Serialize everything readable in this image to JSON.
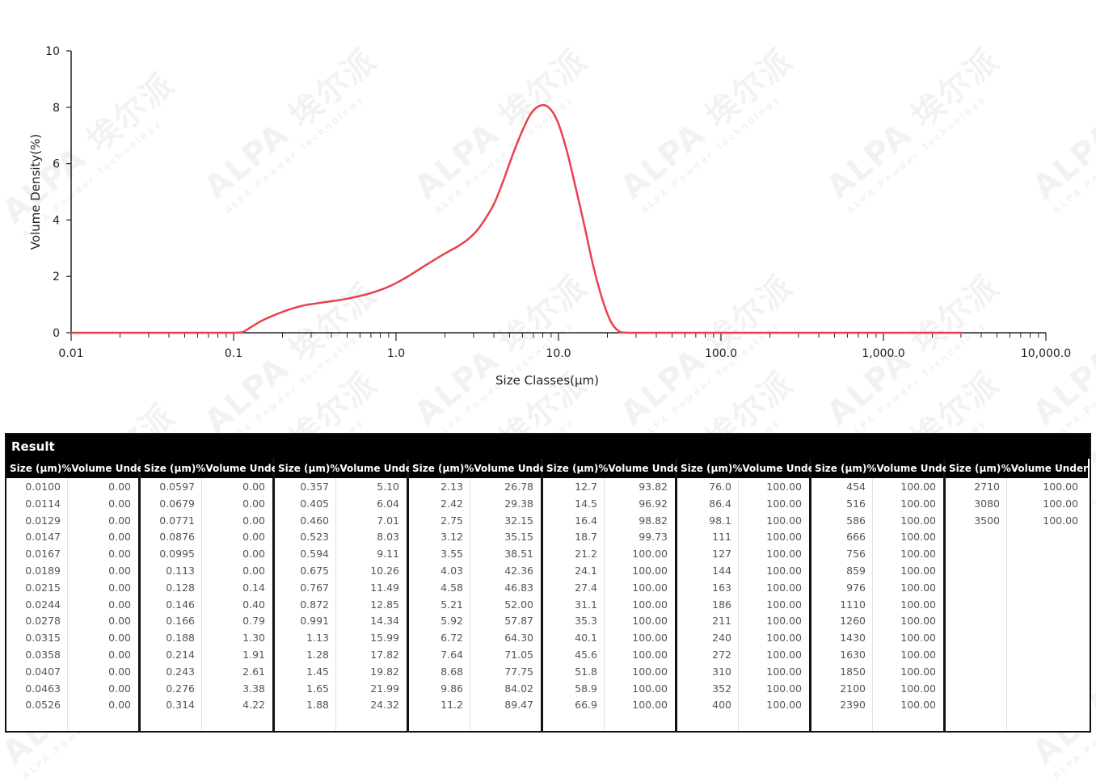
{
  "chart_data": {
    "type": "line",
    "x_scale": "log",
    "xlabel": "Size Classes(μm)",
    "ylabel": "Volume Density(%)",
    "xlim": [
      0.01,
      10000
    ],
    "ylim": [
      0,
      10
    ],
    "x_tick_labels": [
      "0.01",
      "0.1",
      "1.0",
      "10.0",
      "100.0",
      "1,000.0",
      "10,000.0"
    ],
    "y_tick_labels": [
      "0",
      "2",
      "4",
      "6",
      "8",
      "10"
    ],
    "series_color": "#e8414c",
    "series": [
      {
        "x": [
          0.01,
          0.0114,
          0.0129,
          0.0147,
          0.0167,
          0.0189,
          0.0215,
          0.0244,
          0.0278,
          0.0315,
          0.0358,
          0.0407,
          0.0463,
          0.0526,
          0.0597,
          0.0679,
          0.0771,
          0.0876,
          0.0995,
          0.113,
          0.128,
          0.146,
          0.166,
          0.188,
          0.214,
          0.243,
          0.276,
          0.314,
          0.357,
          0.405,
          0.46,
          0.523,
          0.594,
          0.675,
          0.767,
          0.872,
          0.991,
          1.13,
          1.28,
          1.45,
          1.65,
          1.88,
          2.13,
          2.42,
          2.75,
          3.12,
          3.55,
          4.03,
          4.58,
          5.21,
          5.92,
          6.72,
          7.64,
          8.68,
          9.86,
          11.2,
          12.7,
          14.5,
          16.4,
          18.7,
          21.2,
          24.1,
          27.4,
          31.1,
          35.3,
          40.1,
          45.6,
          51.8,
          58.9,
          66.9,
          76.0,
          86.4,
          98.1,
          111,
          127,
          144,
          163,
          186,
          211,
          240,
          272,
          310,
          352,
          400,
          454,
          516,
          586,
          666,
          756,
          859,
          976,
          1110,
          1260,
          1430,
          1630,
          1850,
          2100,
          2390,
          2710,
          3080
        ],
        "y": [
          0,
          0,
          0,
          0,
          0,
          0,
          0,
          0,
          0,
          0,
          0,
          0,
          0,
          0,
          0,
          0,
          0,
          0,
          0,
          0.02,
          0.2,
          0.4,
          0.55,
          0.68,
          0.8,
          0.9,
          0.98,
          1.03,
          1.08,
          1.12,
          1.17,
          1.23,
          1.3,
          1.38,
          1.48,
          1.6,
          1.75,
          1.93,
          2.12,
          2.32,
          2.52,
          2.72,
          2.9,
          3.08,
          3.3,
          3.6,
          4.05,
          4.6,
          5.4,
          6.3,
          7.1,
          7.75,
          8.05,
          8.0,
          7.5,
          6.5,
          5.2,
          3.75,
          2.35,
          1.15,
          0.35,
          0.02,
          0,
          0,
          0,
          0,
          0,
          0,
          0,
          0,
          0,
          0,
          0,
          0,
          0,
          0,
          0,
          0,
          0,
          0,
          0,
          0,
          0,
          0,
          0,
          0,
          0,
          0,
          0,
          0,
          0,
          0,
          0,
          0,
          0,
          0,
          0,
          0,
          0,
          0
        ]
      }
    ]
  },
  "watermark": {
    "text": "ALPA 埃尔派",
    "sub": "ALPA Powder Technology"
  },
  "result": {
    "title": "Result",
    "col_size_header": "Size (μm)",
    "col_vol_header": "%Volume Under",
    "groups": [
      [
        [
          "0.0100",
          "0.00"
        ],
        [
          "0.0114",
          "0.00"
        ],
        [
          "0.0129",
          "0.00"
        ],
        [
          "0.0147",
          "0.00"
        ],
        [
          "0.0167",
          "0.00"
        ],
        [
          "0.0189",
          "0.00"
        ],
        [
          "0.0215",
          "0.00"
        ],
        [
          "0.0244",
          "0.00"
        ],
        [
          "0.0278",
          "0.00"
        ],
        [
          "0.0315",
          "0.00"
        ],
        [
          "0.0358",
          "0.00"
        ],
        [
          "0.0407",
          "0.00"
        ],
        [
          "0.0463",
          "0.00"
        ],
        [
          "0.0526",
          "0.00"
        ]
      ],
      [
        [
          "0.0597",
          "0.00"
        ],
        [
          "0.0679",
          "0.00"
        ],
        [
          "0.0771",
          "0.00"
        ],
        [
          "0.0876",
          "0.00"
        ],
        [
          "0.0995",
          "0.00"
        ],
        [
          "0.113",
          "0.00"
        ],
        [
          "0.128",
          "0.14"
        ],
        [
          "0.146",
          "0.40"
        ],
        [
          "0.166",
          "0.79"
        ],
        [
          "0.188",
          "1.30"
        ],
        [
          "0.214",
          "1.91"
        ],
        [
          "0.243",
          "2.61"
        ],
        [
          "0.276",
          "3.38"
        ],
        [
          "0.314",
          "4.22"
        ]
      ],
      [
        [
          "0.357",
          "5.10"
        ],
        [
          "0.405",
          "6.04"
        ],
        [
          "0.460",
          "7.01"
        ],
        [
          "0.523",
          "8.03"
        ],
        [
          "0.594",
          "9.11"
        ],
        [
          "0.675",
          "10.26"
        ],
        [
          "0.767",
          "11.49"
        ],
        [
          "0.872",
          "12.85"
        ],
        [
          "0.991",
          "14.34"
        ],
        [
          "1.13",
          "15.99"
        ],
        [
          "1.28",
          "17.82"
        ],
        [
          "1.45",
          "19.82"
        ],
        [
          "1.65",
          "21.99"
        ],
        [
          "1.88",
          "24.32"
        ]
      ],
      [
        [
          "2.13",
          "26.78"
        ],
        [
          "2.42",
          "29.38"
        ],
        [
          "2.75",
          "32.15"
        ],
        [
          "3.12",
          "35.15"
        ],
        [
          "3.55",
          "38.51"
        ],
        [
          "4.03",
          "42.36"
        ],
        [
          "4.58",
          "46.83"
        ],
        [
          "5.21",
          "52.00"
        ],
        [
          "5.92",
          "57.87"
        ],
        [
          "6.72",
          "64.30"
        ],
        [
          "7.64",
          "71.05"
        ],
        [
          "8.68",
          "77.75"
        ],
        [
          "9.86",
          "84.02"
        ],
        [
          "11.2",
          "89.47"
        ]
      ],
      [
        [
          "12.7",
          "93.82"
        ],
        [
          "14.5",
          "96.92"
        ],
        [
          "16.4",
          "98.82"
        ],
        [
          "18.7",
          "99.73"
        ],
        [
          "21.2",
          "100.00"
        ],
        [
          "24.1",
          "100.00"
        ],
        [
          "27.4",
          "100.00"
        ],
        [
          "31.1",
          "100.00"
        ],
        [
          "35.3",
          "100.00"
        ],
        [
          "40.1",
          "100.00"
        ],
        [
          "45.6",
          "100.00"
        ],
        [
          "51.8",
          "100.00"
        ],
        [
          "58.9",
          "100.00"
        ],
        [
          "66.9",
          "100.00"
        ]
      ],
      [
        [
          "76.0",
          "100.00"
        ],
        [
          "86.4",
          "100.00"
        ],
        [
          "98.1",
          "100.00"
        ],
        [
          "111",
          "100.00"
        ],
        [
          "127",
          "100.00"
        ],
        [
          "144",
          "100.00"
        ],
        [
          "163",
          "100.00"
        ],
        [
          "186",
          "100.00"
        ],
        [
          "211",
          "100.00"
        ],
        [
          "240",
          "100.00"
        ],
        [
          "272",
          "100.00"
        ],
        [
          "310",
          "100.00"
        ],
        [
          "352",
          "100.00"
        ],
        [
          "400",
          "100.00"
        ]
      ],
      [
        [
          "454",
          "100.00"
        ],
        [
          "516",
          "100.00"
        ],
        [
          "586",
          "100.00"
        ],
        [
          "666",
          "100.00"
        ],
        [
          "756",
          "100.00"
        ],
        [
          "859",
          "100.00"
        ],
        [
          "976",
          "100.00"
        ],
        [
          "1110",
          "100.00"
        ],
        [
          "1260",
          "100.00"
        ],
        [
          "1430",
          "100.00"
        ],
        [
          "1630",
          "100.00"
        ],
        [
          "1850",
          "100.00"
        ],
        [
          "2100",
          "100.00"
        ],
        [
          "2390",
          "100.00"
        ]
      ],
      [
        [
          "2710",
          "100.00"
        ],
        [
          "3080",
          "100.00"
        ],
        [
          "3500",
          "100.00"
        ]
      ]
    ]
  }
}
